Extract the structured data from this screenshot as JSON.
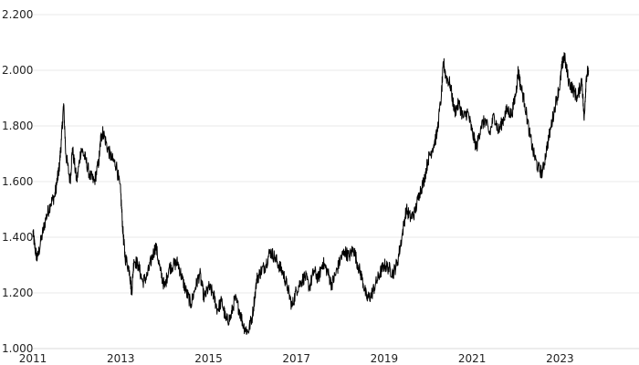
{
  "chart_data": {
    "type": "line",
    "title": "",
    "xlabel": "",
    "ylabel": "",
    "xlim": [
      2011.0,
      2024.8
    ],
    "ylim": [
      1.0,
      2.2
    ],
    "grid": true,
    "legend": "none",
    "line_color": "#000000",
    "x_ticks": [
      {
        "value": 2011,
        "label": "2011"
      },
      {
        "value": 2013,
        "label": "2013"
      },
      {
        "value": 2015,
        "label": "2015"
      },
      {
        "value": 2017,
        "label": "2017"
      },
      {
        "value": 2019,
        "label": "2019"
      },
      {
        "value": 2021,
        "label": "2021"
      },
      {
        "value": 2023,
        "label": "2023"
      }
    ],
    "y_ticks": [
      {
        "value": 1.0,
        "label": "1.000"
      },
      {
        "value": 1.2,
        "label": "1.200"
      },
      {
        "value": 1.4,
        "label": "1.400"
      },
      {
        "value": 1.6,
        "label": "1.600"
      },
      {
        "value": 1.8,
        "label": "1.800"
      },
      {
        "value": 2.0,
        "label": "2.000"
      },
      {
        "value": 2.2,
        "label": "2.200"
      }
    ],
    "series": [
      {
        "x": [
          2011.0,
          2011.05,
          2011.1,
          2011.2,
          2011.3,
          2011.4,
          2011.5,
          2011.55,
          2011.6,
          2011.65,
          2011.7,
          2011.75,
          2011.85,
          2011.9,
          2012.0,
          2012.1,
          2012.2,
          2012.3,
          2012.4,
          2012.5,
          2012.55,
          2012.6,
          2012.7,
          2012.8,
          2012.9,
          2013.0,
          2013.05,
          2013.1,
          2013.2,
          2013.25,
          2013.3,
          2013.4,
          2013.5,
          2013.6,
          2013.7,
          2013.8,
          2013.9,
          2014.0,
          2014.1,
          2014.2,
          2014.3,
          2014.4,
          2014.5,
          2014.6,
          2014.7,
          2014.8,
          2014.9,
          2015.0,
          2015.1,
          2015.2,
          2015.3,
          2015.4,
          2015.5,
          2015.6,
          2015.7,
          2015.8,
          2015.9,
          2016.0,
          2016.1,
          2016.2,
          2016.3,
          2016.4,
          2016.5,
          2016.6,
          2016.7,
          2016.8,
          2016.9,
          2017.0,
          2017.1,
          2017.2,
          2017.3,
          2017.4,
          2017.5,
          2017.6,
          2017.7,
          2017.8,
          2017.9,
          2018.0,
          2018.1,
          2018.2,
          2018.3,
          2018.4,
          2018.5,
          2018.6,
          2018.7,
          2018.8,
          2018.9,
          2019.0,
          2019.1,
          2019.2,
          2019.3,
          2019.4,
          2019.5,
          2019.6,
          2019.7,
          2019.8,
          2019.9,
          2020.0,
          2020.1,
          2020.2,
          2020.3,
          2020.35,
          2020.4,
          2020.5,
          2020.6,
          2020.7,
          2020.8,
          2020.9,
          2021.0,
          2021.1,
          2021.2,
          2021.3,
          2021.4,
          2021.5,
          2021.6,
          2021.7,
          2021.8,
          2021.9,
          2022.0,
          2022.05,
          2022.1,
          2022.2,
          2022.3,
          2022.4,
          2022.5,
          2022.6,
          2022.7,
          2022.8,
          2022.9,
          2023.0,
          2023.05,
          2023.1,
          2023.2,
          2023.3,
          2023.4,
          2023.5,
          2023.55,
          2023.6,
          2023.65
        ],
        "y": [
          1.42,
          1.36,
          1.32,
          1.4,
          1.47,
          1.52,
          1.55,
          1.6,
          1.65,
          1.75,
          1.88,
          1.7,
          1.6,
          1.72,
          1.6,
          1.72,
          1.68,
          1.62,
          1.6,
          1.67,
          1.76,
          1.78,
          1.72,
          1.68,
          1.66,
          1.56,
          1.42,
          1.33,
          1.28,
          1.2,
          1.32,
          1.3,
          1.24,
          1.26,
          1.32,
          1.37,
          1.28,
          1.22,
          1.29,
          1.3,
          1.31,
          1.25,
          1.2,
          1.16,
          1.22,
          1.27,
          1.18,
          1.22,
          1.2,
          1.14,
          1.17,
          1.1,
          1.11,
          1.18,
          1.14,
          1.08,
          1.06,
          1.12,
          1.25,
          1.28,
          1.3,
          1.35,
          1.33,
          1.3,
          1.27,
          1.22,
          1.15,
          1.21,
          1.24,
          1.26,
          1.22,
          1.28,
          1.25,
          1.31,
          1.28,
          1.23,
          1.27,
          1.32,
          1.35,
          1.33,
          1.36,
          1.3,
          1.25,
          1.18,
          1.19,
          1.23,
          1.27,
          1.3,
          1.29,
          1.27,
          1.31,
          1.4,
          1.5,
          1.47,
          1.49,
          1.56,
          1.6,
          1.68,
          1.72,
          1.77,
          1.91,
          2.03,
          1.98,
          1.95,
          1.85,
          1.88,
          1.83,
          1.85,
          1.78,
          1.72,
          1.8,
          1.82,
          1.77,
          1.84,
          1.78,
          1.82,
          1.86,
          1.84,
          1.92,
          2.0,
          1.95,
          1.88,
          1.78,
          1.7,
          1.65,
          1.63,
          1.72,
          1.8,
          1.88,
          1.95,
          2.02,
          2.05,
          1.96,
          1.93,
          1.9,
          1.97,
          1.82,
          1.98,
          2.0
        ]
      }
    ]
  }
}
